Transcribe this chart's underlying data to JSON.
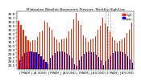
{
  "title": "Milwaukee Weather Barometric Pressure",
  "subtitle": "Monthly High/Low",
  "background_color": "#ffffff",
  "legend_high": "High",
  "legend_low": "Low",
  "high_color": "#ff2200",
  "low_color": "#0000cc",
  "ylim": [
    29.4,
    30.85
  ],
  "yticks": [
    29.5,
    29.6,
    29.7,
    29.8,
    29.9,
    30.0,
    30.1,
    30.2,
    30.3,
    30.4,
    30.5,
    30.6,
    30.7,
    30.8
  ],
  "months": [
    "J",
    "F",
    "M",
    "A",
    "M",
    "J",
    "J",
    "A",
    "S",
    "O",
    "N",
    "D",
    "J",
    "F",
    "M",
    "A",
    "M",
    "J",
    "J",
    "A",
    "S",
    "O",
    "N",
    "D",
    "J",
    "F",
    "M",
    "A",
    "M",
    "J",
    "J",
    "A",
    "S",
    "O",
    "N",
    "D",
    "J",
    "F",
    "M",
    "A",
    "M",
    "J",
    "J",
    "A",
    "S",
    "O",
    "N",
    "D"
  ],
  "highs": [
    30.62,
    30.51,
    30.39,
    30.22,
    30.12,
    30.08,
    30.12,
    30.13,
    30.2,
    30.32,
    30.38,
    30.61,
    30.58,
    30.45,
    30.4,
    30.2,
    30.15,
    30.07,
    30.14,
    30.16,
    30.18,
    30.35,
    30.42,
    30.65,
    30.82,
    30.62,
    30.52,
    30.25,
    30.18,
    30.09,
    30.15,
    30.17,
    30.22,
    30.4,
    30.5,
    30.7,
    30.55,
    30.48,
    30.35,
    30.2,
    30.12,
    30.06,
    30.11,
    30.15,
    30.19,
    30.3,
    30.4,
    30.58
  ],
  "lows": [
    29.62,
    29.72,
    29.8,
    29.82,
    29.85,
    29.84,
    29.83,
    29.82,
    29.78,
    29.72,
    29.65,
    29.58,
    29.55,
    29.68,
    29.75,
    29.8,
    29.85,
    29.85,
    29.85,
    29.83,
    29.79,
    29.74,
    29.68,
    29.52,
    29.48,
    29.62,
    29.72,
    29.78,
    29.82,
    29.84,
    29.83,
    29.82,
    29.76,
    29.7,
    29.62,
    29.5,
    29.6,
    29.66,
    29.75,
    29.8,
    29.84,
    29.84,
    29.84,
    29.82,
    29.78,
    29.72,
    29.65,
    29.56
  ],
  "dashed_indices": [
    36,
    37,
    38
  ],
  "bar_width": 0.38,
  "n_bars": 48
}
